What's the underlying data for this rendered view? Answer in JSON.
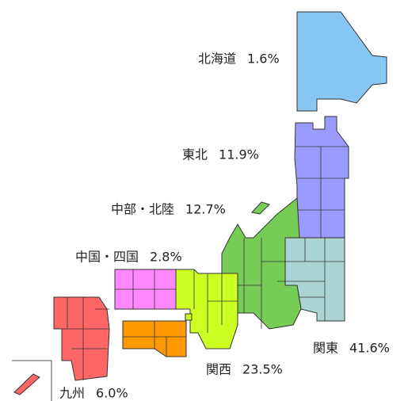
{
  "regions": [
    {
      "name": "北海道",
      "share": "1.6%"
    },
    {
      "name": "東北",
      "share": "11.9%"
    },
    {
      "name": "中部・北陸",
      "share": "12.7%"
    },
    {
      "name": "中国・四国",
      "share": "2.8%"
    },
    {
      "name": "関東",
      "share": "41.6%"
    },
    {
      "name": "関西",
      "share": "23.5%"
    },
    {
      "name": "九州",
      "share": "6.0%"
    }
  ]
}
